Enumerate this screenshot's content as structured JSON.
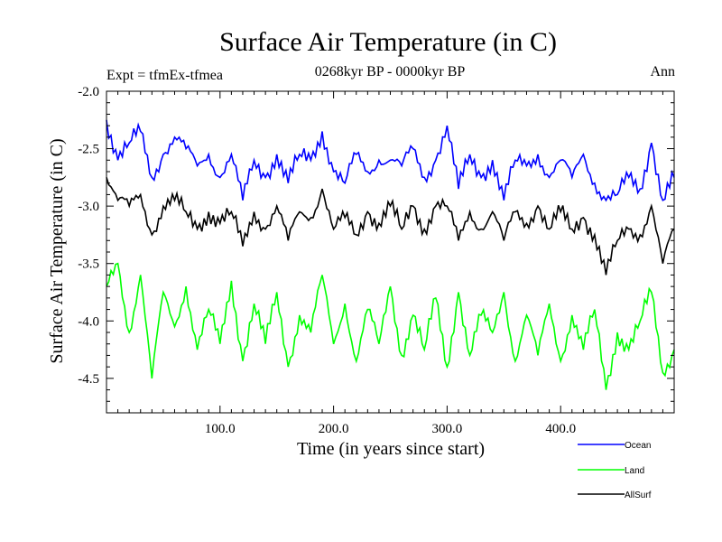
{
  "chart_data": {
    "type": "line",
    "title": "Surface Air Temperature (in C)",
    "subtitle": "0268kyr BP - 0000kyr BP",
    "experiment_label": "Expt = tfmEx-tfmea",
    "season_label": "Ann",
    "xlabel": "Time (in years since start)",
    "ylabel": "Surface Air Temperature (in C)",
    "xlim": [
      0,
      500
    ],
    "ylim": [
      -4.8,
      -2.0
    ],
    "x_ticks": [
      100,
      200,
      300,
      400
    ],
    "x_tick_labels": [
      "100.0",
      "200.0",
      "300.0",
      "400.0"
    ],
    "y_ticks": [
      -4.5,
      -4.0,
      -3.5,
      -3.0,
      -2.5,
      -2.0
    ],
    "y_tick_labels": [
      "-4.5",
      "-4.0",
      "-3.5",
      "-3.0",
      "-2.5",
      "-2.0"
    ],
    "grid": false,
    "legend_position": "bottom-right",
    "series": [
      {
        "name": "Ocean",
        "color": "#0000ff",
        "x": [
          0,
          10,
          20,
          30,
          40,
          50,
          60,
          70,
          80,
          90,
          100,
          110,
          120,
          130,
          140,
          150,
          160,
          170,
          180,
          190,
          200,
          210,
          220,
          230,
          240,
          250,
          260,
          270,
          280,
          290,
          300,
          310,
          320,
          330,
          340,
          350,
          360,
          370,
          380,
          390,
          400,
          410,
          420,
          430,
          440,
          450,
          460,
          470,
          480,
          490,
          500
        ],
        "values": [
          -2.25,
          -2.6,
          -2.45,
          -2.35,
          -2.75,
          -2.55,
          -2.4,
          -2.5,
          -2.65,
          -2.55,
          -2.75,
          -2.55,
          -2.95,
          -2.6,
          -2.75,
          -2.55,
          -2.8,
          -2.55,
          -2.6,
          -2.35,
          -2.7,
          -2.8,
          -2.55,
          -2.7,
          -2.6,
          -2.6,
          -2.65,
          -2.5,
          -2.75,
          -2.6,
          -2.3,
          -2.85,
          -2.55,
          -2.75,
          -2.6,
          -2.95,
          -2.6,
          -2.65,
          -2.55,
          -2.75,
          -2.6,
          -2.75,
          -2.55,
          -2.8,
          -2.95,
          -2.9,
          -2.75,
          -2.85,
          -2.45,
          -2.95,
          -2.75
        ]
      },
      {
        "name": "Land",
        "color": "#00ff00",
        "x": [
          0,
          10,
          20,
          30,
          40,
          50,
          60,
          70,
          80,
          90,
          100,
          110,
          120,
          130,
          140,
          150,
          160,
          170,
          180,
          190,
          200,
          210,
          220,
          230,
          240,
          250,
          260,
          270,
          280,
          290,
          300,
          310,
          320,
          330,
          340,
          350,
          360,
          370,
          380,
          390,
          400,
          410,
          420,
          430,
          440,
          450,
          460,
          470,
          480,
          490,
          500
        ],
        "values": [
          -3.7,
          -3.5,
          -4.1,
          -3.6,
          -4.5,
          -3.75,
          -4.05,
          -3.7,
          -4.25,
          -3.9,
          -4.2,
          -3.65,
          -4.35,
          -3.85,
          -4.2,
          -3.75,
          -4.4,
          -3.95,
          -4.1,
          -3.6,
          -4.2,
          -3.85,
          -4.35,
          -3.9,
          -4.2,
          -3.7,
          -4.3,
          -3.95,
          -4.25,
          -3.8,
          -4.4,
          -3.75,
          -4.3,
          -3.95,
          -4.1,
          -3.75,
          -4.35,
          -3.95,
          -4.3,
          -3.85,
          -4.35,
          -3.95,
          -4.25,
          -3.9,
          -4.6,
          -4.1,
          -4.25,
          -4.0,
          -3.75,
          -4.45,
          -4.25
        ]
      },
      {
        "name": "AllSurf",
        "color": "#000000",
        "x": [
          0,
          10,
          20,
          30,
          40,
          50,
          60,
          70,
          80,
          90,
          100,
          110,
          120,
          130,
          140,
          150,
          160,
          170,
          180,
          190,
          200,
          210,
          220,
          230,
          240,
          250,
          260,
          270,
          280,
          290,
          300,
          310,
          320,
          330,
          340,
          350,
          360,
          370,
          380,
          390,
          400,
          410,
          420,
          430,
          440,
          450,
          460,
          470,
          480,
          490,
          500
        ],
        "values": [
          -2.75,
          -2.95,
          -3.0,
          -2.9,
          -3.25,
          -3.0,
          -2.95,
          -3.05,
          -3.2,
          -3.05,
          -3.15,
          -3.05,
          -3.35,
          -3.05,
          -3.2,
          -3.0,
          -3.3,
          -3.05,
          -3.1,
          -2.85,
          -3.2,
          -3.1,
          -3.25,
          -3.05,
          -3.15,
          -3.0,
          -3.2,
          -3.0,
          -3.2,
          -3.0,
          -3.0,
          -3.3,
          -3.05,
          -3.2,
          -3.05,
          -3.3,
          -3.05,
          -3.15,
          -3.0,
          -3.2,
          -3.05,
          -3.2,
          -3.1,
          -3.25,
          -3.6,
          -3.3,
          -3.2,
          -3.25,
          -3.0,
          -3.5,
          -3.2
        ]
      }
    ]
  }
}
